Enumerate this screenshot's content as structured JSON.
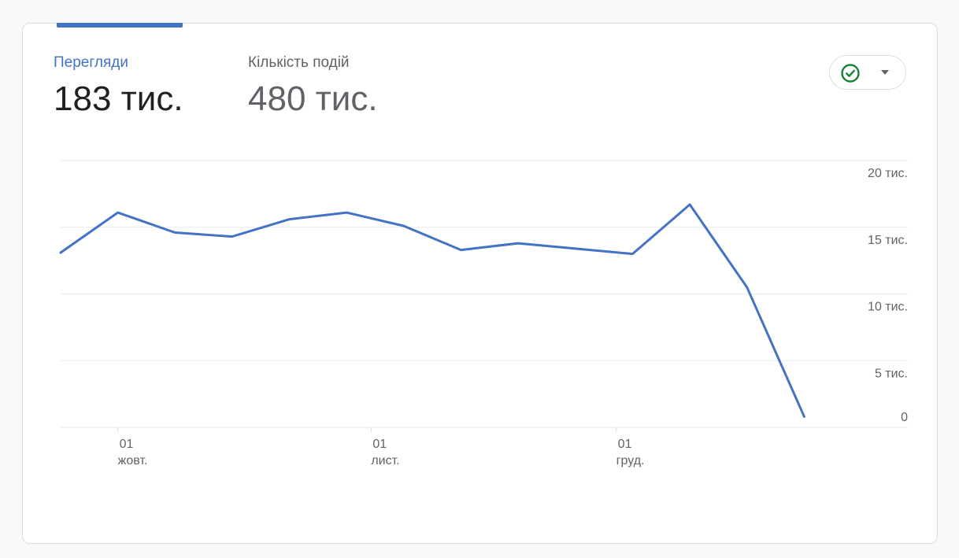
{
  "tabs": [
    {
      "label": "Перегляди",
      "value": "183 тис."
    },
    {
      "label": "Кількість подій",
      "value": "480 тис."
    }
  ],
  "colors": {
    "accent": "#4472c4",
    "status_check": "#188038",
    "gridline": "#e8eaed"
  },
  "icons": {
    "status": "check-circle-icon",
    "dropdown": "caret-down-icon"
  },
  "chart_data": {
    "type": "line",
    "title": "",
    "xlabel": "",
    "ylabel": "",
    "ylim": [
      0,
      20000
    ],
    "grid": true,
    "yticks": [
      {
        "value": 20000,
        "label": "20 тис."
      },
      {
        "value": 15000,
        "label": "15 тис."
      },
      {
        "value": 10000,
        "label": "10 тис."
      },
      {
        "value": 5000,
        "label": "5 тис."
      },
      {
        "value": 0,
        "label": "0"
      }
    ],
    "xticks": [
      {
        "x": "2023-10-01",
        "day": "01",
        "month": "жовт."
      },
      {
        "x": "2023-11-01",
        "day": "01",
        "month": "лист."
      },
      {
        "x": "2023-12-01",
        "day": "01",
        "month": "груд."
      }
    ],
    "xlim": [
      "2023-09-24",
      "2023-12-31"
    ],
    "series": [
      {
        "x": [
          "2023-09-24",
          "2023-10-01",
          "2023-10-08",
          "2023-10-15",
          "2023-10-22",
          "2023-10-29",
          "2023-11-05",
          "2023-11-12",
          "2023-11-19",
          "2023-11-26",
          "2023-12-03",
          "2023-12-10",
          "2023-12-17",
          "2023-12-24"
        ],
        "values": [
          13100,
          16100,
          14600,
          14300,
          15600,
          16100,
          15100,
          13300,
          13800,
          13400,
          13000,
          16700,
          10500,
          800
        ]
      }
    ]
  }
}
